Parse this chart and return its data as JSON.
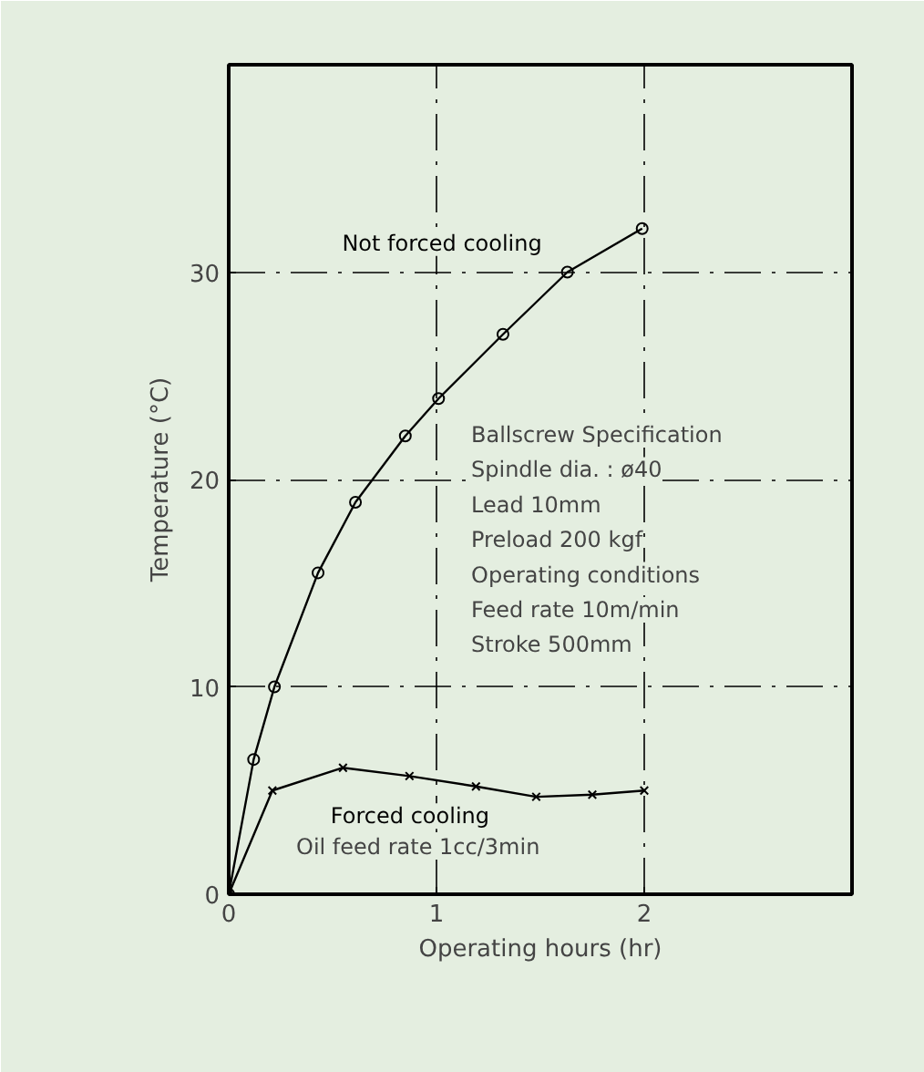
{
  "chart_data": {
    "type": "line",
    "xlabel": "Operating hours (hr)",
    "ylabel": "Temperature (°C)",
    "xlim": [
      0,
      3
    ],
    "ylim": [
      0,
      40
    ],
    "xticks": [
      0,
      1,
      2
    ],
    "yticks": [
      0,
      10,
      20,
      30
    ],
    "grid": true,
    "series": [
      {
        "name": "Not forced cooling",
        "color": "#000000",
        "marker": "circle",
        "x": [
          0,
          0.12,
          0.22,
          0.43,
          0.61,
          0.85,
          1.01,
          1.32,
          1.63,
          1.99
        ],
        "values": [
          0,
          6.5,
          10.0,
          15.5,
          18.9,
          22.1,
          23.9,
          27.0,
          30.0,
          32.1
        ]
      },
      {
        "name": "Forced cooling",
        "color": "#000000",
        "marker": "cross",
        "x": [
          0,
          0.21,
          0.55,
          0.87,
          1.19,
          1.48,
          1.75,
          2.0
        ],
        "values": [
          0,
          5.0,
          6.1,
          5.7,
          5.2,
          4.7,
          4.8,
          5.0
        ]
      }
    ],
    "annotations": [
      "Oil feed rate 1cc/3min",
      "Ballscrew Specification",
      "Spindle dia. : ø40",
      "Lead 10mm",
      "Preload 200 kgf",
      "Operating conditions",
      "Feed rate 10m/min",
      "Stroke 500mm"
    ]
  }
}
